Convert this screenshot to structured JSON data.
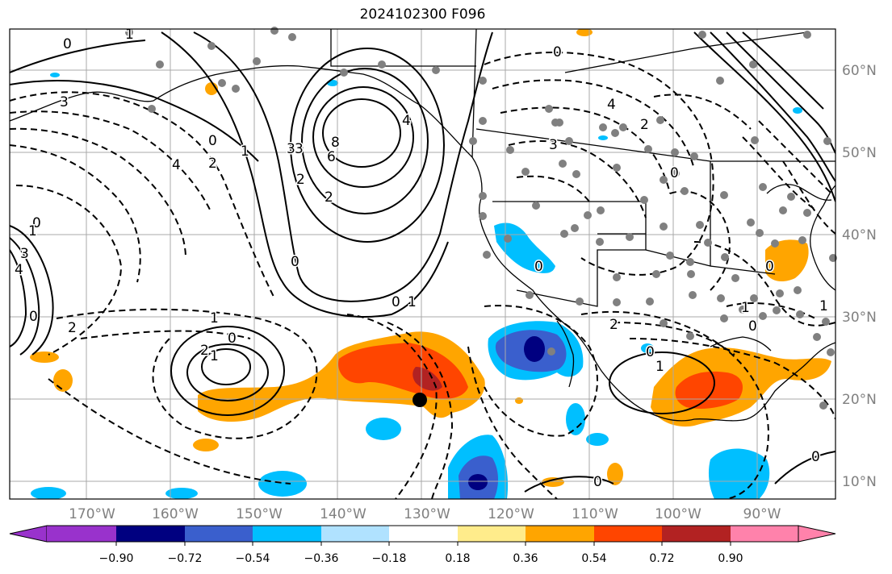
{
  "title": "2024102300 F096",
  "colors": {
    "background": "#ffffff",
    "grid": "#a9a9a9",
    "coast": "#000000",
    "station": "#808080"
  },
  "axes": {
    "lat_labels": [
      "60°N",
      "50°N",
      "40°N",
      "30°N",
      "20°N",
      "10°N"
    ],
    "lon_labels": [
      "170°W",
      "160°W",
      "150°W",
      "140°W",
      "130°W",
      "120°W",
      "110°W",
      "100°W",
      "90°W"
    ]
  },
  "colorbar": {
    "ticks": [
      "−0.90",
      "−0.72",
      "−0.54",
      "−0.36",
      "−0.18",
      "0.18",
      "0.36",
      "0.54",
      "0.72",
      "0.90"
    ],
    "bins": [
      "#9932cc",
      "#000080",
      "#3a5fcd",
      "#00bfff",
      "#b0e2ff",
      "#ffffff",
      "#ffec8b",
      "#ffa500",
      "#ff4500",
      "#b22222",
      "#ff82ab"
    ]
  },
  "contour_labels": [
    "0",
    "1",
    "3",
    "3",
    "2",
    "0",
    "1",
    "2",
    "4",
    "8",
    "6",
    "3",
    "2",
    "4",
    "0",
    "0",
    "1",
    "3",
    "4",
    "2",
    "0",
    "1",
    "2",
    "0",
    "1",
    "0",
    "4",
    "3",
    "0",
    "1",
    "0",
    "2",
    "1",
    "2",
    "0",
    "1",
    "0",
    "0",
    "0",
    "0",
    "0",
    "1"
  ]
}
